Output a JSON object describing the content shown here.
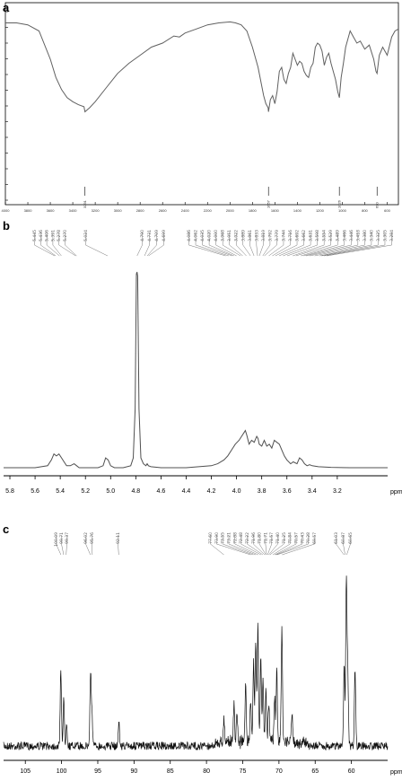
{
  "panels": {
    "a": "a",
    "b": "b",
    "c": "c"
  },
  "colors": {
    "ir": "#606060",
    "h1": "#505050",
    "c13": "#111111",
    "frame": "#000000"
  },
  "chart_data": [
    {
      "type": "line",
      "panel": "a",
      "xlim": [
        4000,
        500
      ],
      "x_ticks": [
        "4000",
        "3800",
        "3600",
        "3400",
        "3200",
        "3000",
        "2800",
        "2600",
        "2400",
        "2200",
        "2000",
        "1800",
        "1600",
        "1400",
        "1200",
        "1000",
        "800",
        "600"
      ],
      "y_ticks": [
        "",
        "",
        "",
        "",
        "",
        "",
        "",
        "",
        "",
        "",
        "",
        "",
        ""
      ],
      "peak_labels": [
        {
          "x": 3291,
          "label": "3291"
        },
        {
          "x": 1657,
          "label": "1657"
        },
        {
          "x": 1026,
          "label": "1026"
        },
        {
          "x": 690,
          "label": "690"
        }
      ],
      "x": [
        4000,
        3900,
        3800,
        3700,
        3600,
        3550,
        3500,
        3450,
        3400,
        3350,
        3300,
        3291,
        3250,
        3200,
        3100,
        3000,
        2900,
        2800,
        2700,
        2600,
        2500,
        2450,
        2400,
        2300,
        2200,
        2100,
        2000,
        1950,
        1900,
        1850,
        1800,
        1750,
        1700,
        1680,
        1660,
        1657,
        1640,
        1620,
        1600,
        1580,
        1560,
        1540,
        1520,
        1500,
        1480,
        1460,
        1440,
        1420,
        1400,
        1380,
        1360,
        1340,
        1320,
        1300,
        1280,
        1260,
        1240,
        1220,
        1200,
        1180,
        1160,
        1140,
        1120,
        1100,
        1080,
        1060,
        1040,
        1026,
        1010,
        990,
        970,
        950,
        930,
        900,
        870,
        840,
        800,
        760,
        720,
        700,
        690,
        670,
        640,
        600,
        560,
        530,
        500
      ],
      "y": [
        9.0,
        9.0,
        8.9,
        8.6,
        7.2,
        6.3,
        5.7,
        5.3,
        5.1,
        4.95,
        4.85,
        4.6,
        4.8,
        5.1,
        5.8,
        6.5,
        7.0,
        7.4,
        7.8,
        8.0,
        8.35,
        8.3,
        8.5,
        8.7,
        8.9,
        9.0,
        9.05,
        9.0,
        8.9,
        8.6,
        7.8,
        6.8,
        5.4,
        5.0,
        4.8,
        4.6,
        5.2,
        5.4,
        5.0,
        5.6,
        6.6,
        6.8,
        6.2,
        6.0,
        6.5,
        6.8,
        7.5,
        7.2,
        6.9,
        7.1,
        7.0,
        6.6,
        6.4,
        6.3,
        6.8,
        7.0,
        7.8,
        8.0,
        7.9,
        7.6,
        6.9,
        7.3,
        7.5,
        7.0,
        6.6,
        6.2,
        5.6,
        5.3,
        6.3,
        7.0,
        7.8,
        8.2,
        8.6,
        8.3,
        8.0,
        8.1,
        7.7,
        7.9,
        7.2,
        6.6,
        6.5,
        7.4,
        7.8,
        7.4,
        8.3,
        8.6,
        8.7
      ]
    },
    {
      "type": "line",
      "panel": "b",
      "xlim": [
        5.85,
        2.8
      ],
      "x_ticks": [
        "5.8",
        "5.6",
        "5.4",
        "5.2",
        "5.0",
        "4.8",
        "4.6",
        "4.4",
        "4.2",
        "4.0",
        "3.8",
        "3.6",
        "3.4",
        "3.2"
      ],
      "xlabel": "ppm",
      "peak_labels": [
        "5.445",
        "5.436",
        "5.406",
        "5.391",
        "5.278",
        "5.270",
        "5.024",
        "4.790",
        "4.731",
        "4.709",
        "4.699",
        "4.086",
        "4.062",
        "4.035",
        "4.020",
        "4.000",
        "3.968",
        "3.951",
        "3.922",
        "3.889",
        "3.861",
        "3.833",
        "3.819",
        "3.792",
        "3.779",
        "3.744",
        "3.716",
        "3.692",
        "3.662",
        "3.631",
        "3.598",
        "3.554",
        "3.529",
        "3.489",
        "3.466",
        "3.446",
        "3.418",
        "3.380",
        "3.340",
        "3.325",
        "3.305",
        "3.284"
      ],
      "x": [
        5.85,
        5.6,
        5.5,
        5.47,
        5.45,
        5.43,
        5.41,
        5.39,
        5.37,
        5.35,
        5.32,
        5.29,
        5.27,
        5.25,
        5.1,
        5.06,
        5.04,
        5.02,
        5.0,
        4.97,
        4.9,
        4.84,
        4.82,
        4.805,
        4.795,
        4.79,
        4.785,
        4.775,
        4.76,
        4.74,
        4.72,
        4.71,
        4.7,
        4.68,
        4.6,
        4.4,
        4.2,
        4.15,
        4.1,
        4.07,
        4.04,
        4.01,
        3.98,
        3.96,
        3.94,
        3.93,
        3.92,
        3.9,
        3.88,
        3.86,
        3.84,
        3.83,
        3.82,
        3.8,
        3.78,
        3.76,
        3.74,
        3.72,
        3.7,
        3.68,
        3.66,
        3.64,
        3.62,
        3.6,
        3.57,
        3.55,
        3.52,
        3.5,
        3.48,
        3.46,
        3.44,
        3.42,
        3.4,
        3.35,
        3.3,
        3.25,
        3.1,
        2.8
      ],
      "y": [
        0.0,
        0.0,
        0.01,
        0.04,
        0.07,
        0.06,
        0.07,
        0.05,
        0.03,
        0.01,
        0.01,
        0.02,
        0.01,
        0.0,
        0.0,
        0.01,
        0.05,
        0.04,
        0.01,
        0.0,
        0.0,
        0.01,
        0.05,
        0.3,
        0.99,
        1.0,
        0.98,
        0.3,
        0.05,
        0.02,
        0.01,
        0.02,
        0.01,
        0.005,
        0.0,
        0.0,
        0.01,
        0.02,
        0.04,
        0.06,
        0.09,
        0.12,
        0.14,
        0.16,
        0.18,
        0.19,
        0.17,
        0.12,
        0.14,
        0.13,
        0.16,
        0.15,
        0.12,
        0.11,
        0.14,
        0.11,
        0.12,
        0.1,
        0.14,
        0.13,
        0.12,
        0.09,
        0.06,
        0.04,
        0.02,
        0.03,
        0.02,
        0.05,
        0.04,
        0.02,
        0.01,
        0.015,
        0.01,
        0.005,
        0.003,
        0.002,
        0.0,
        0.0
      ]
    },
    {
      "type": "line",
      "panel": "c",
      "xlim": [
        108,
        55
      ],
      "x_ticks": [
        "105",
        "100",
        "95",
        "90",
        "85",
        "80",
        "75",
        "70",
        "65",
        "60"
      ],
      "xlabel": "ppm",
      "peak_labels": [
        "100.09",
        "99.71",
        "99.37",
        "96.02",
        "95.76",
        "92.11",
        "77.60",
        "73.90",
        "73.55",
        "73.21",
        "72.88",
        "72.48",
        "72.22",
        "71.96",
        "71.80",
        "71.71",
        "71.57",
        "71.40",
        "71.25",
        "70.84",
        "70.57",
        "70.43",
        "70.28",
        "69.57",
        "61.03",
        "60.87",
        "60.65"
      ],
      "peaks": [
        {
          "ppm": 100.1,
          "h": 0.37
        },
        {
          "ppm": 99.7,
          "h": 0.22
        },
        {
          "ppm": 99.3,
          "h": 0.12
        },
        {
          "ppm": 96.0,
          "h": 0.36
        },
        {
          "ppm": 95.8,
          "h": 0.15
        },
        {
          "ppm": 92.1,
          "h": 0.12
        },
        {
          "ppm": 77.6,
          "h": 0.12
        },
        {
          "ppm": 76.2,
          "h": 0.18
        },
        {
          "ppm": 75.8,
          "h": 0.13
        },
        {
          "ppm": 74.6,
          "h": 0.28
        },
        {
          "ppm": 73.9,
          "h": 0.2
        },
        {
          "ppm": 73.5,
          "h": 0.38
        },
        {
          "ppm": 73.2,
          "h": 0.48
        },
        {
          "ppm": 72.9,
          "h": 0.56
        },
        {
          "ppm": 72.5,
          "h": 0.4
        },
        {
          "ppm": 72.2,
          "h": 0.3
        },
        {
          "ppm": 71.8,
          "h": 0.25
        },
        {
          "ppm": 71.4,
          "h": 0.18
        },
        {
          "ppm": 70.6,
          "h": 0.22
        },
        {
          "ppm": 70.3,
          "h": 0.35
        },
        {
          "ppm": 69.6,
          "h": 0.55
        },
        {
          "ppm": 68.2,
          "h": 0.14
        },
        {
          "ppm": 61.0,
          "h": 0.4
        },
        {
          "ppm": 60.7,
          "h": 0.82
        },
        {
          "ppm": 60.5,
          "h": 0.35
        },
        {
          "ppm": 59.5,
          "h": 0.38
        }
      ]
    }
  ]
}
